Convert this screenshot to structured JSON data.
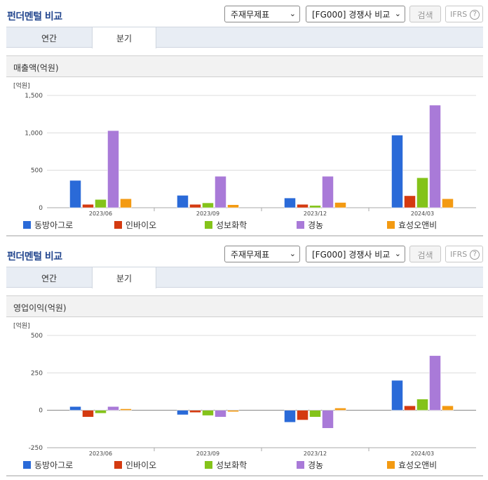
{
  "header": {
    "title": "펀더멘털 비교",
    "statement_select": "주재무제표",
    "compare_select": "[FG000] 경쟁사 비교",
    "search_label": "검색",
    "ifrs_label": "IFRS",
    "help_glyph": "?"
  },
  "tabs": [
    {
      "label": "연간",
      "active": false
    },
    {
      "label": "분기",
      "active": true
    }
  ],
  "colors": {
    "series": [
      "#2a6ad8",
      "#d43a10",
      "#84c31a",
      "#a97ad8",
      "#f39a12"
    ],
    "accent": "#24478f"
  },
  "chart_data": [
    {
      "type": "bar",
      "title": "매출액(억원)",
      "unit_label": "[억원]",
      "categories": [
        "2023/06",
        "2023/09",
        "2023/12",
        "2024/03"
      ],
      "ylim": [
        0,
        1500
      ],
      "yticks": [
        0,
        500,
        1000,
        1500
      ],
      "ytick_labels": [
        "0",
        "500",
        "1,000",
        "1,500"
      ],
      "grid": true,
      "legend": "bottom",
      "series": [
        {
          "name": "동방아그로",
          "values": [
            365,
            165,
            130,
            970
          ]
        },
        {
          "name": "인바이오",
          "values": [
            45,
            45,
            45,
            160
          ]
        },
        {
          "name": "성보화학",
          "values": [
            110,
            65,
            30,
            400
          ]
        },
        {
          "name": "경농",
          "values": [
            1030,
            420,
            420,
            1370
          ]
        },
        {
          "name": "효성오앤비",
          "values": [
            120,
            40,
            70,
            120
          ]
        }
      ]
    },
    {
      "type": "bar",
      "title": "영업이익(억원)",
      "unit_label": "[억원]",
      "categories": [
        "2023/06",
        "2023/09",
        "2023/12",
        "2024/03"
      ],
      "ylim": [
        -250,
        500
      ],
      "yticks": [
        -250,
        0,
        250,
        500
      ],
      "ytick_labels": [
        "-250",
        "0",
        "250",
        "500"
      ],
      "grid": true,
      "legend": "bottom",
      "series": [
        {
          "name": "동방아그로",
          "values": [
            25,
            -30,
            -80,
            200
          ]
        },
        {
          "name": "인바이오",
          "values": [
            -45,
            -15,
            -65,
            30
          ]
        },
        {
          "name": "성보화학",
          "values": [
            -20,
            -35,
            -45,
            75
          ]
        },
        {
          "name": "경농",
          "values": [
            25,
            -45,
            -120,
            365
          ]
        },
        {
          "name": "효성오앤비",
          "values": [
            10,
            -10,
            15,
            30
          ]
        }
      ]
    }
  ]
}
